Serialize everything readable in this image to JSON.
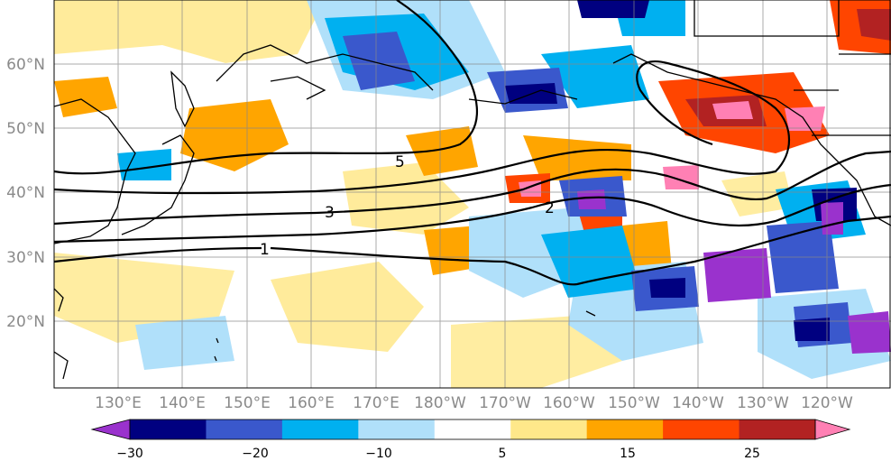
{
  "map": {
    "lon_labels": [
      "130°E",
      "140°E",
      "150°E",
      "160°E",
      "170°E",
      "180°W",
      "170°W",
      "160°W",
      "150°W",
      "140°W",
      "130°W",
      "120°W"
    ],
    "lat_labels": [
      "60°N",
      "50°N",
      "40°N",
      "30°N",
      "20°N"
    ],
    "contour_labels": [
      "5",
      "3",
      "2",
      "1"
    ]
  },
  "colorbar": {
    "colors": [
      "#9a32cd",
      "#000080",
      "#3a58cc",
      "#00b0f0",
      "#b0e0fa",
      "#ffffff",
      "#ffe88a",
      "#ffa500",
      "#ff4500",
      "#b22222",
      "#ff80b4"
    ],
    "tick_labels": [
      "−30",
      "−20",
      "−10",
      "5",
      "15",
      "25"
    ]
  }
}
